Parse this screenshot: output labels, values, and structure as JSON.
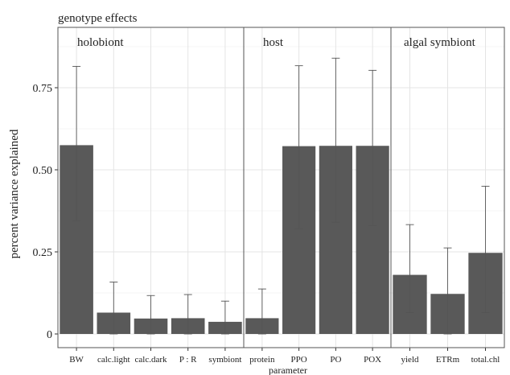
{
  "chart_data": {
    "type": "bar",
    "title": "genotype effects",
    "xlabel": "parameter",
    "ylabel": "percent variance explained",
    "ylim": [
      0,
      0.99
    ],
    "yticks": [
      0,
      0.25,
      0.5,
      0.75
    ],
    "ytick_labels": [
      "0",
      "0.25",
      "0.50",
      "0.75"
    ],
    "grid": true,
    "bar_color": "#595959",
    "error_color": "#555555",
    "panels": [
      {
        "label": "holobiont",
        "categories": [
          "BW",
          "calc.light",
          "calc.dark",
          "P : R",
          "symbiont"
        ],
        "values": [
          0.575,
          0.065,
          0.047,
          0.048,
          0.037
        ],
        "err_low": [
          0.345,
          0.0,
          0.0,
          0.0,
          0.0
        ],
        "err_high": [
          0.815,
          0.158,
          0.117,
          0.12,
          0.1
        ]
      },
      {
        "label": "host",
        "categories": [
          "protein",
          "PPO",
          "PO",
          "POX"
        ],
        "values": [
          0.048,
          0.572,
          0.573,
          0.573
        ],
        "err_low": [
          0.0,
          0.32,
          0.34,
          0.33
        ],
        "err_high": [
          0.137,
          0.817,
          0.84,
          0.803
        ]
      },
      {
        "label": "algal symbiont",
        "categories": [
          "yield",
          "ETRm",
          "total.chl"
        ],
        "values": [
          0.18,
          0.122,
          0.247
        ],
        "err_low": [
          0.065,
          0.0,
          0.065
        ],
        "err_high": [
          0.333,
          0.262,
          0.45
        ]
      }
    ]
  }
}
